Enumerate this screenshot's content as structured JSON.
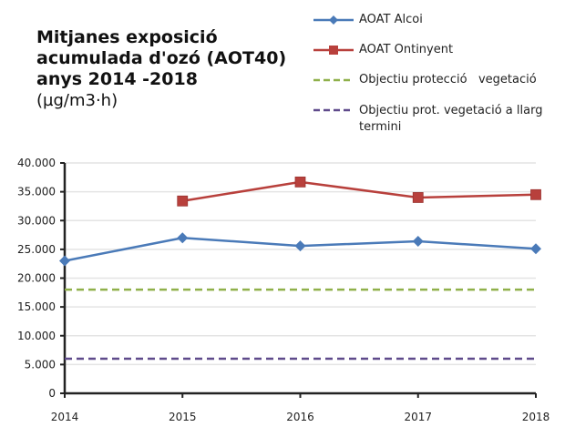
{
  "chart_data": {
    "type": "line",
    "title_lines": [
      "Mitjanes exposició",
      "acumulada d'ozó (AOT40)",
      "anys 2014 -2018"
    ],
    "units": "(µg/m3·h)",
    "xlabel": "",
    "ylabel": "",
    "categories": [
      "2014",
      "2015",
      "2016",
      "2017",
      "2018"
    ],
    "ylim": [
      0,
      40000
    ],
    "yticks": [
      0,
      5000,
      10000,
      15000,
      20000,
      25000,
      30000,
      35000,
      40000
    ],
    "ytick_labels": [
      "0",
      "5.000",
      "10.000",
      "15.000",
      "20.000",
      "25.000",
      "30.000",
      "35.000",
      "40.000"
    ],
    "grid": true,
    "legend_position": "top-right",
    "series": [
      {
        "name": "AOAT Alcoi",
        "color": "#4a7ab8",
        "marker": "diamond",
        "dash": false,
        "values": [
          23000,
          27000,
          25600,
          26400,
          25100
        ]
      },
      {
        "name": "AOAT Ontinyent",
        "color": "#b8403c",
        "marker": "square",
        "dash": false,
        "values": [
          null,
          33400,
          36700,
          34000,
          34500
        ]
      },
      {
        "name": "Objectiu protecció   vegetació",
        "color": "#8fb04a",
        "marker": "none",
        "dash": true,
        "values": [
          18000,
          18000,
          18000,
          18000,
          18000
        ]
      },
      {
        "name": "Objectiu prot. vegetació a llarg termini",
        "color": "#5f4a8b",
        "marker": "none",
        "dash": true,
        "values": [
          6000,
          6000,
          6000,
          6000,
          6000
        ]
      }
    ]
  }
}
